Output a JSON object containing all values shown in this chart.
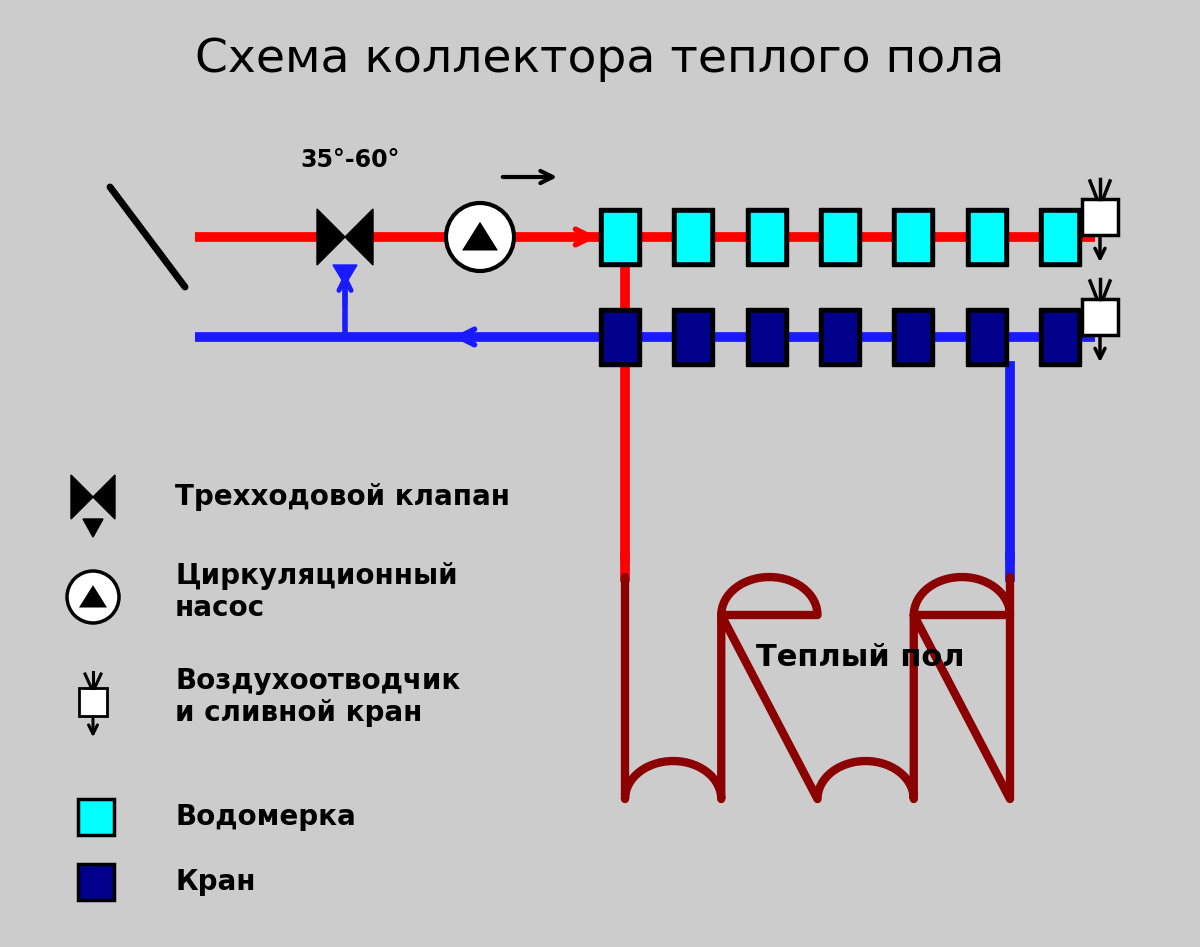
{
  "title": "Схема коллектора теплого пола",
  "bg_color": "#cccccc",
  "red_color": "#ff0000",
  "blue_color": "#1a1aff",
  "dark_red_color": "#8b0000",
  "cyan_color": "#00ffff",
  "dark_blue_color": "#00008b",
  "black_color": "#000000",
  "white_color": "#ffffff",
  "legend_labels": [
    "Трехходовой клапан",
    "Циркуляционный\nнасос",
    "Воздухоотводчик\nи сливной кран",
    "Водомерка",
    "Кран"
  ],
  "temp_label": "35°-60°",
  "floor_label": "Теплый пол"
}
